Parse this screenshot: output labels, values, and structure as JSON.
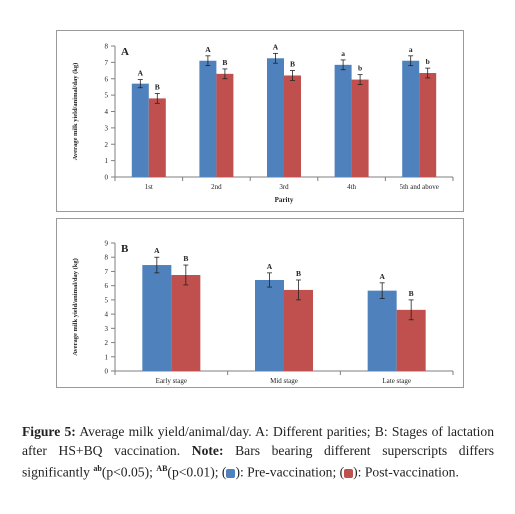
{
  "chart_data": [
    {
      "type": "bar",
      "panel_label": "A",
      "categories": [
        "1st",
        "2nd",
        "3rd",
        "4th",
        "5th and above"
      ],
      "series": [
        {
          "values": [
            5.7,
            7.1,
            7.25,
            6.85,
            7.1
          ],
          "errors": [
            0.25,
            0.3,
            0.3,
            0.3,
            0.3
          ],
          "labels": [
            "A",
            "A",
            "A",
            "a",
            "a"
          ],
          "color": "#4f81bd"
        },
        {
          "values": [
            4.8,
            6.3,
            6.2,
            5.95,
            6.35
          ],
          "errors": [
            0.3,
            0.3,
            0.3,
            0.3,
            0.3
          ],
          "labels": [
            "B",
            "B",
            "B",
            "b",
            "b"
          ],
          "color": "#c0504d"
        }
      ],
      "xlabel": "Parity",
      "ylabel": "Average milk yield/animal/day (kg)",
      "ylim": [
        0,
        8
      ],
      "yticks": [
        "0",
        "1",
        "2",
        "3",
        "4",
        "5",
        "6",
        "7",
        "8"
      ],
      "grid": false,
      "legend": "none"
    },
    {
      "type": "bar",
      "panel_label": "B",
      "categories": [
        "Early stage",
        "Mid stage",
        "Late stage"
      ],
      "series": [
        {
          "values": [
            7.45,
            6.4,
            5.65
          ],
          "errors": [
            0.55,
            0.5,
            0.55
          ],
          "labels": [
            "A",
            "A",
            "A"
          ],
          "color": "#4f81bd"
        },
        {
          "values": [
            6.75,
            5.7,
            4.3
          ],
          "errors": [
            0.7,
            0.7,
            0.7
          ],
          "labels": [
            "B",
            "B",
            "B"
          ],
          "color": "#c0504d"
        }
      ],
      "xlabel": "Stages of lactation",
      "ylabel": "Average milk yield/animal/day (kg)",
      "ylim": [
        0,
        9
      ],
      "yticks": [
        "0",
        "1",
        "2",
        "3",
        "4",
        "5",
        "6",
        "7",
        "8",
        "9"
      ],
      "grid": false,
      "legend": "none"
    }
  ],
  "caption": {
    "label": "Figure 5:",
    "text1": " Average milk yield/animal/day. A: Different parities; B: Stages of lactation after HS+BQ vaccination. ",
    "note_label": "Note:",
    "text2": " Bars bearing different superscripts differs significantly ",
    "sup1": "ab",
    "p1": "(p<0.05); ",
    "sup2": "AB",
    "p2": "(p<0.01); (",
    "mid": "): Pre-vaccination; (",
    "end": "): Post-vaccination.",
    "pre_color": "#4f81bd",
    "post_color": "#c0504d"
  }
}
